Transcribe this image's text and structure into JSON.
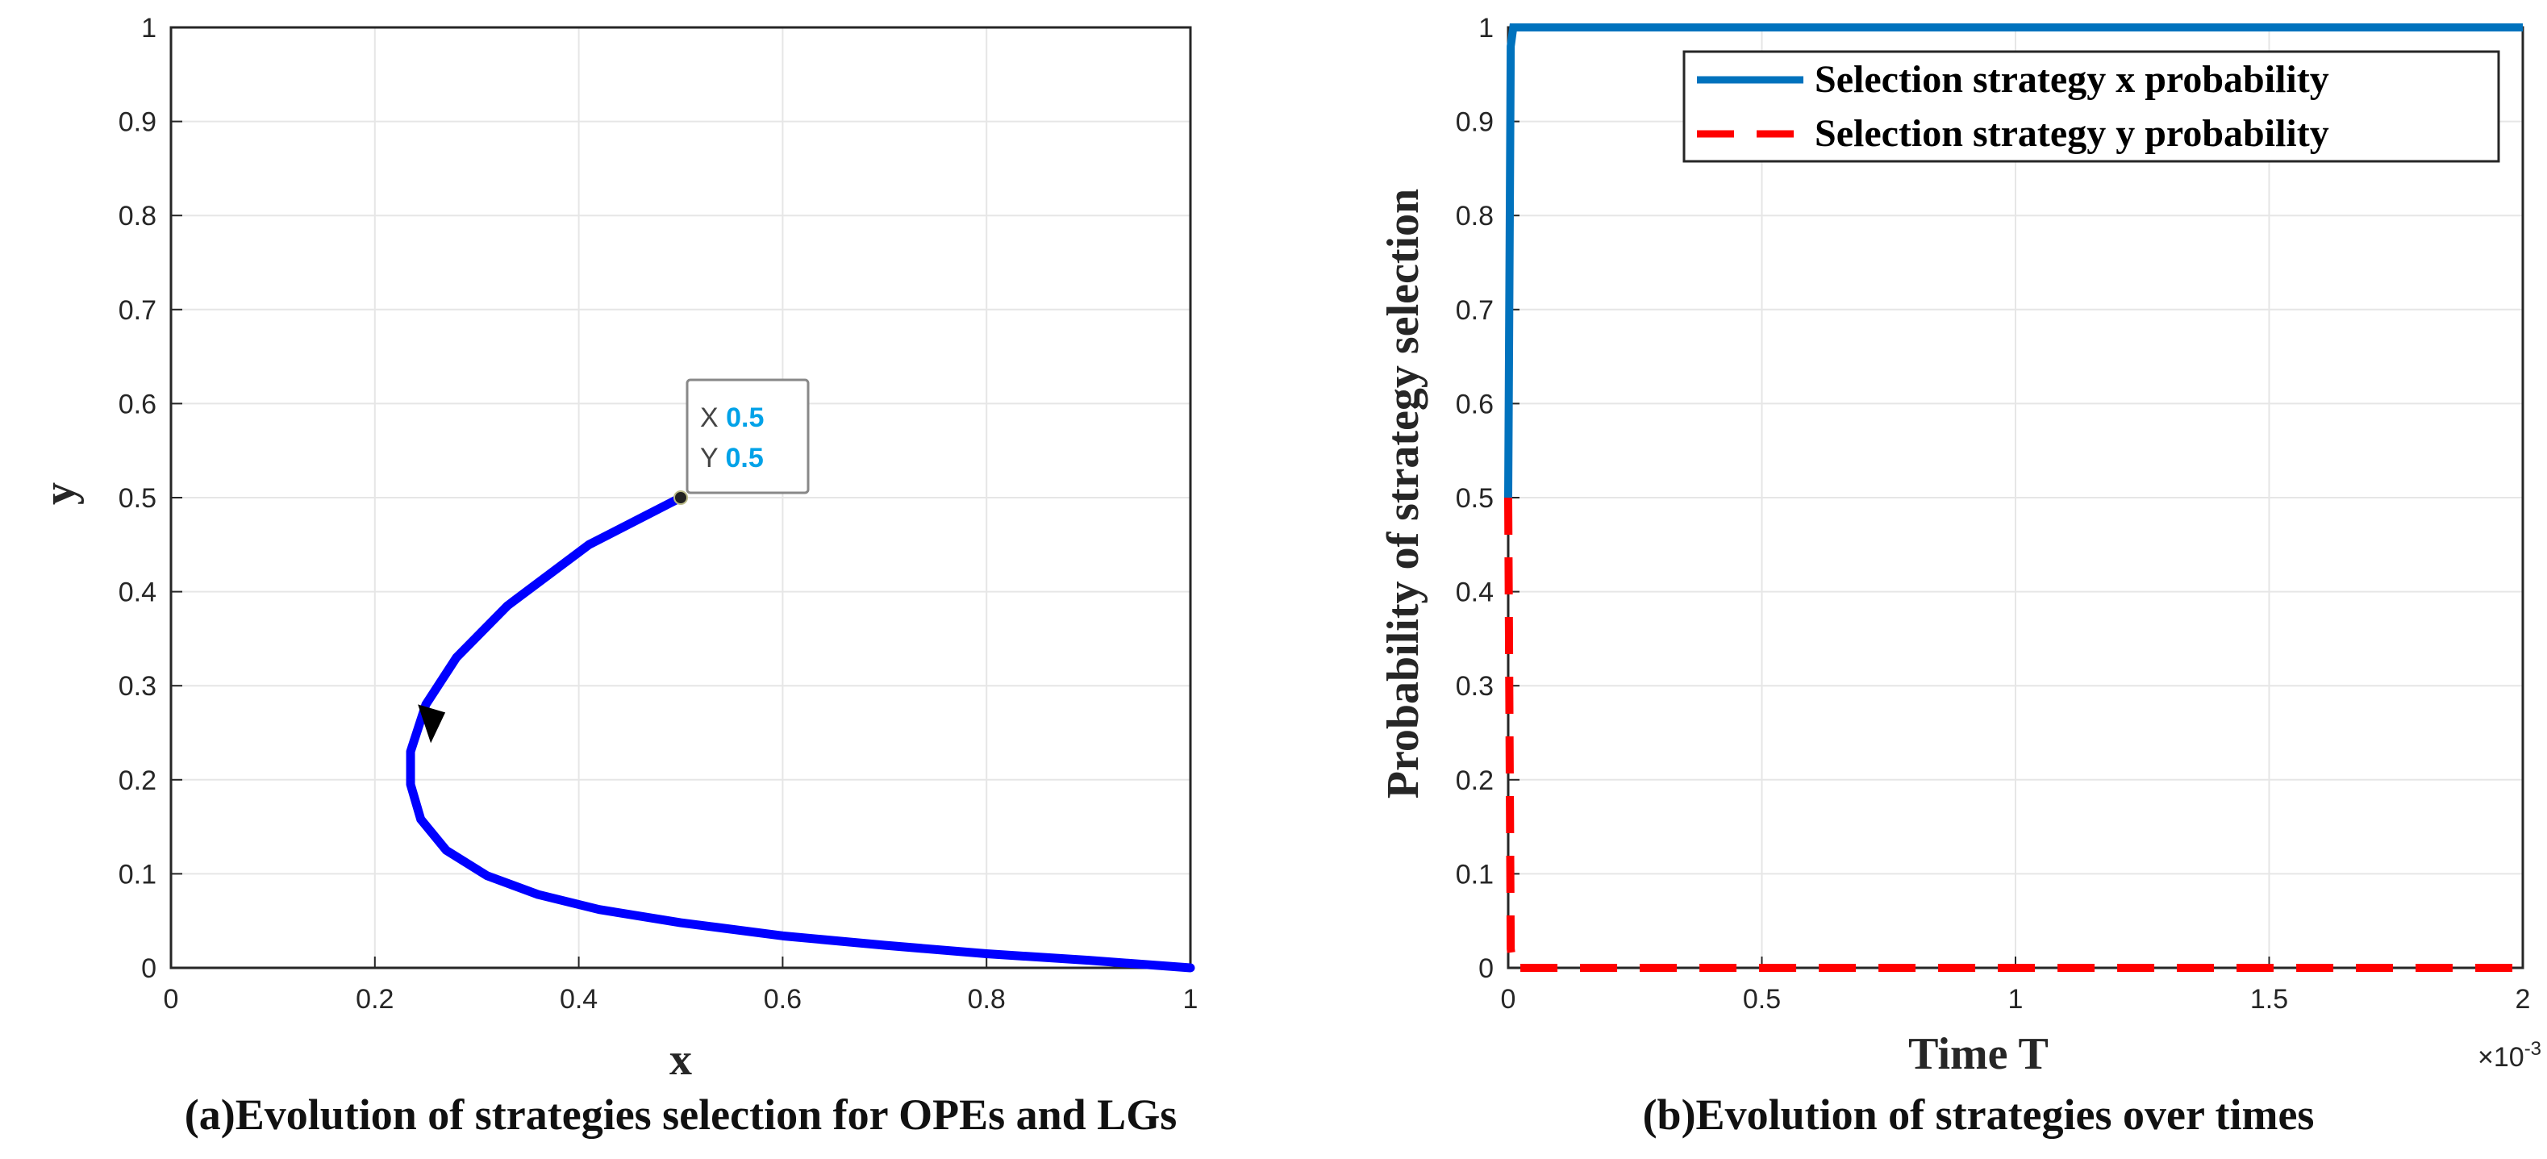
{
  "colors": {
    "trajectory": "#0000FF",
    "x_series": "#0072BD",
    "y_series": "#FF0000",
    "grid": "#E6E6E6",
    "axis": "#262626",
    "datatip_value": "#00A2E8"
  },
  "chart_data": [
    {
      "type": "line",
      "id": "a",
      "caption": "(a)Evolution of strategies selection for OPEs and LGs",
      "xlabel": "x",
      "ylabel": "y",
      "xlim": [
        0,
        1
      ],
      "ylim": [
        0,
        1
      ],
      "xticks": [
        0,
        0.2,
        0.4,
        0.6,
        0.8,
        1
      ],
      "xtick_labels": [
        "0",
        "0.2",
        "0.4",
        "0.6",
        "0.8",
        "1"
      ],
      "yticks": [
        0,
        0.1,
        0.2,
        0.3,
        0.4,
        0.5,
        0.6,
        0.7,
        0.8,
        0.9,
        1
      ],
      "ytick_labels": [
        "0",
        "0.1",
        "0.2",
        "0.3",
        "0.4",
        "0.5",
        "0.6",
        "0.7",
        "0.8",
        "0.9",
        "1"
      ],
      "grid": true,
      "series": [
        {
          "name": "trajectory",
          "x": [
            0.5,
            0.41,
            0.33,
            0.28,
            0.25,
            0.235,
            0.235,
            0.245,
            0.27,
            0.31,
            0.36,
            0.42,
            0.5,
            0.6,
            0.7,
            0.8,
            0.9,
            1.0
          ],
          "y": [
            0.5,
            0.45,
            0.385,
            0.33,
            0.28,
            0.23,
            0.195,
            0.158,
            0.125,
            0.098,
            0.078,
            0.062,
            0.048,
            0.034,
            0.024,
            0.015,
            0.008,
            0.0
          ]
        }
      ],
      "arrow": {
        "x": 0.258,
        "y": 0.275
      },
      "datatip": {
        "x": 0.5,
        "y": 0.5,
        "x_label": "X",
        "x_value": "0.5",
        "y_label": "Y",
        "y_value": "0.5"
      }
    },
    {
      "type": "line",
      "id": "b",
      "caption": "(b)Evolution of strategies over times",
      "xlabel": "Time T",
      "ylabel": "Probability of strategy selection",
      "xlim": [
        0,
        2
      ],
      "ylim": [
        0,
        1
      ],
      "xticks": [
        0,
        0.5,
        1,
        1.5,
        2
      ],
      "xtick_labels": [
        "0",
        "0.5",
        "1",
        "1.5",
        "2"
      ],
      "yticks": [
        0,
        0.1,
        0.2,
        0.3,
        0.4,
        0.5,
        0.6,
        0.7,
        0.8,
        0.9,
        1
      ],
      "ytick_labels": [
        "0",
        "0.1",
        "0.2",
        "0.3",
        "0.4",
        "0.5",
        "0.6",
        "0.7",
        "0.8",
        "0.9",
        "1"
      ],
      "x_exponent_base": "×10",
      "x_exponent_power": "-3",
      "grid": true,
      "legend_position": "top-right",
      "series": [
        {
          "name": "Selection strategy x probability",
          "style": "solid",
          "x": [
            0,
            0.005,
            0.01,
            2
          ],
          "y": [
            0.5,
            0.98,
            1,
            1
          ]
        },
        {
          "name": "Selection strategy y probability",
          "style": "dashed",
          "x": [
            0,
            0.005,
            0.01,
            2
          ],
          "y": [
            0.5,
            0.02,
            0,
            0
          ]
        }
      ]
    }
  ]
}
